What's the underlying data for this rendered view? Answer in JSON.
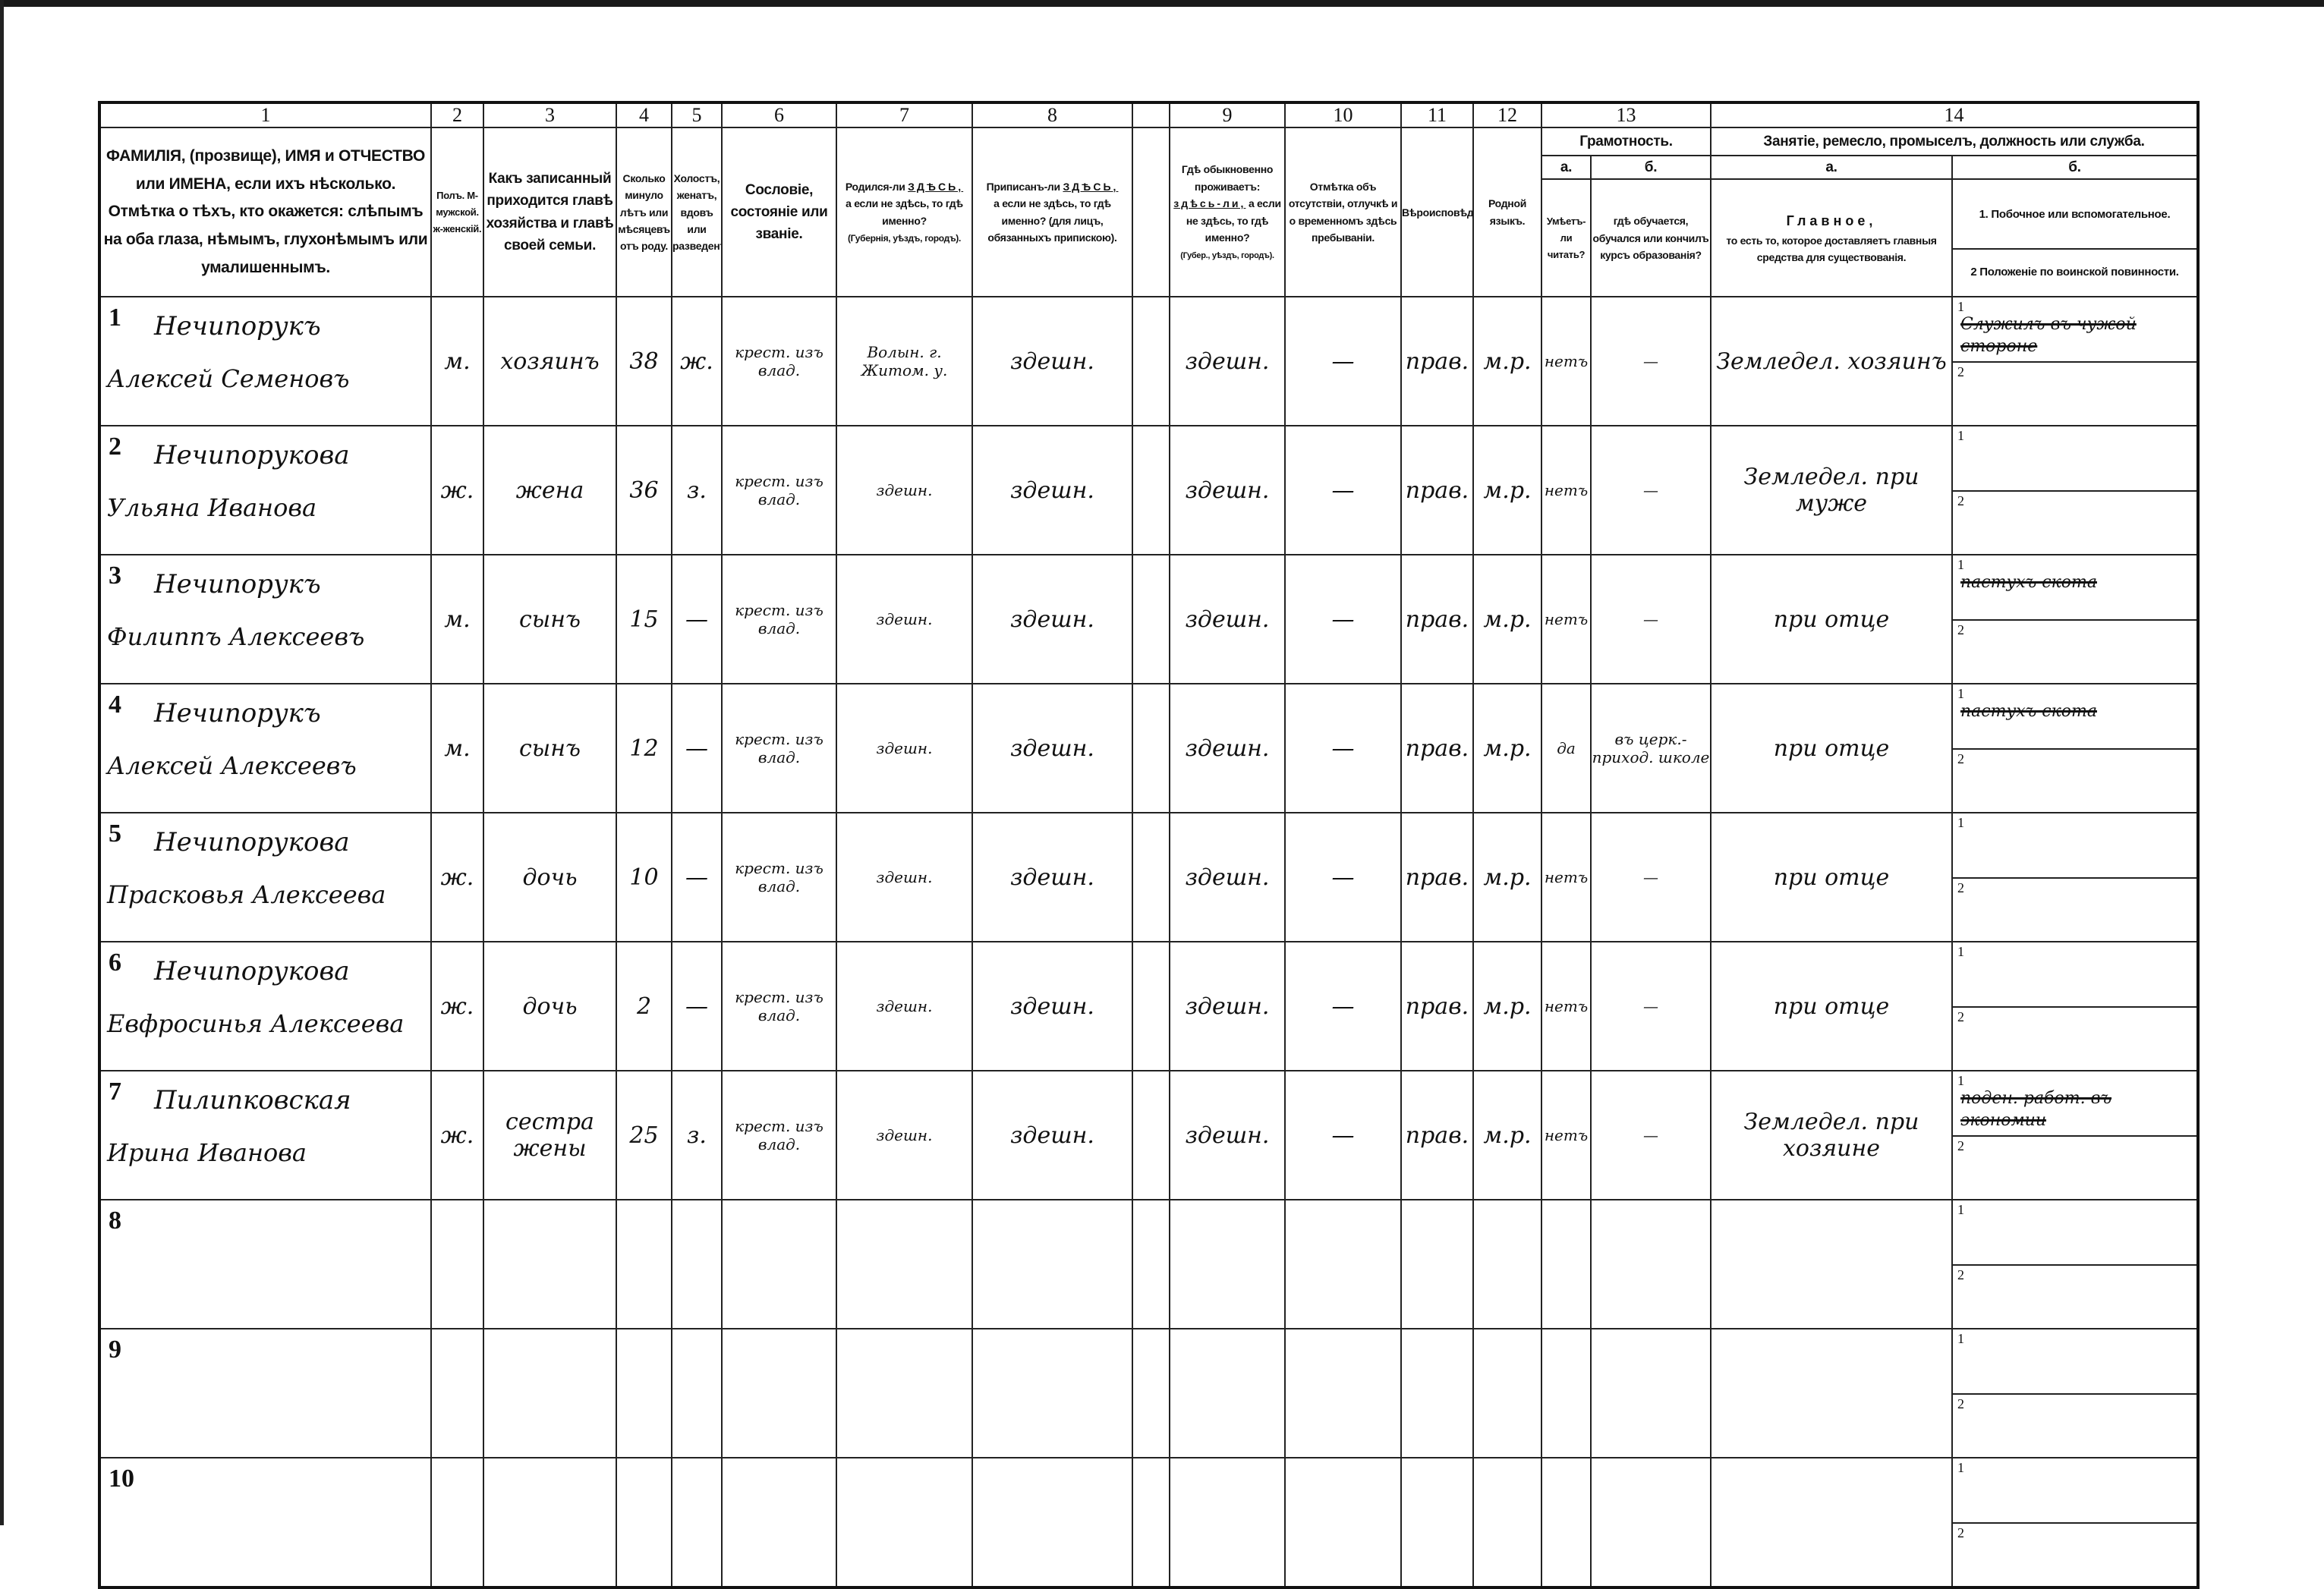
{
  "header": {
    "numbers": [
      "1",
      "2",
      "3",
      "4",
      "5",
      "6",
      "7",
      "8",
      "",
      "9",
      "10",
      "11",
      "12",
      "13",
      "14"
    ],
    "col1": "ФАМИЛІЯ, (прозвище), ИМЯ и ОТЧЕСТВО или ИМЕНА, если ихъ нѣсколько. Отмѣтка о тѣхъ, кто окажется: слѣпымъ на оба глаза, нѣмымъ, глухонѣмымъ или умалишеннымъ.",
    "col2": "Полъ. М-мужской. ж-женскій.",
    "col3": "Какъ записанный приходится главѣ хозяйства и главѣ своей семьи.",
    "col4": "Сколько минуло лѣтъ или мѣсяцевъ отъ роду.",
    "col5": "Холостъ, женатъ, вдовъ или разведенъ.",
    "col6": "Сословіе, состояніе или званіе.",
    "col7_a": "Родился-ли",
    "col7_u": "ЗДѢСЬ,",
    "col7_b": "а если не здѣсь, то гдѣ именно?",
    "col7_c": "(Губернія, уѣздъ, городъ).",
    "col8_a": "Приписанъ-ли",
    "col8_u": "ЗДѢСЬ,",
    "col8_b": "а если не здѣсь, то гдѣ именно? (для лицъ, обязанныхъ припискою).",
    "col9_a": "Гдѣ обыкновенно проживаетъ:",
    "col9_u": "здѣсь-ли,",
    "col9_b": "а если не здѣсь, то гдѣ именно?",
    "col9_c": "(Губер., уѣздъ, городъ).",
    "col10": "Отмѣтка объ отсутствіи, отлучкѣ и о временномъ здѣсь пребываніи.",
    "col11": "Вѣроисповѣданіе.",
    "col12": "Родной языкъ.",
    "col13_title": "Грамотность.",
    "col13_a": "а.",
    "col13_b": "б.",
    "col13_a_text": "Умѣетъ-ли читать?",
    "col13_b_text": "гдѣ обучается, обучался или кончилъ курсъ образованія?",
    "col14_title": "Занятіе, ремесло, промыселъ, должность или служба.",
    "col14_a": "а.",
    "col14_b": "б.",
    "col14_a_title": "Главное,",
    "col14_a_text": "то есть то, которое доставляетъ главныя средства для существованія.",
    "col14_b_1": "1. Побочное или вспомогательное.",
    "col14_b_2": "2 Положеніе по воинской повинности."
  },
  "side_labels": [
    "1",
    "2"
  ],
  "rows": [
    {
      "num": "1",
      "surname": "Нечипорукъ",
      "given": "Алексей Семеновъ",
      "sex": "м.",
      "relation": "хозяинъ",
      "age": "38",
      "marital": "ж.",
      "estate": "крест. изъ влад.",
      "birthplace": "Волын. г. Житом. у.",
      "registered": "здешн.",
      "residence": "здешн.",
      "absence": "—",
      "religion": "прав.",
      "language": "м.р.",
      "lit_a": "нетъ",
      "lit_b": "—",
      "occ_main": "Земледел. хозяинъ",
      "occ_side": "Служилъ въ чужой стороне",
      "occ_side_struck": true,
      "military": ""
    },
    {
      "num": "2",
      "surname": "Нечипорукова",
      "given": "Ульяна Иванова",
      "sex": "ж.",
      "relation": "жена",
      "age": "36",
      "marital": "з.",
      "estate": "крест. изъ влад.",
      "birthplace": "здешн.",
      "registered": "здешн.",
      "residence": "здешн.",
      "absence": "—",
      "religion": "прав.",
      "language": "м.р.",
      "lit_a": "нетъ",
      "lit_b": "—",
      "occ_main": "Земледел. при муже",
      "occ_side": "",
      "occ_side_struck": false,
      "military": ""
    },
    {
      "num": "3",
      "surname": "Нечипорукъ",
      "given": "Филиппъ Алексеевъ",
      "sex": "м.",
      "relation": "сынъ",
      "age": "15",
      "marital": "—",
      "estate": "крест. изъ влад.",
      "birthplace": "здешн.",
      "registered": "здешн.",
      "residence": "здешн.",
      "absence": "—",
      "religion": "прав.",
      "language": "м.р.",
      "lit_a": "нетъ",
      "lit_b": "—",
      "occ_main": "при отце",
      "occ_side": "пастухъ скота",
      "occ_side_struck": true,
      "military": ""
    },
    {
      "num": "4",
      "surname": "Нечипорукъ",
      "given": "Алексей Алексеевъ",
      "sex": "м.",
      "relation": "сынъ",
      "age": "12",
      "marital": "—",
      "estate": "крест. изъ влад.",
      "birthplace": "здешн.",
      "registered": "здешн.",
      "residence": "здешн.",
      "absence": "—",
      "religion": "прав.",
      "language": "м.р.",
      "lit_a": "да",
      "lit_b": "въ церк.-приход. школе",
      "occ_main": "при отце",
      "occ_side": "пастухъ скота",
      "occ_side_struck": true,
      "military": ""
    },
    {
      "num": "5",
      "surname": "Нечипорукова",
      "given": "Прасковья Алексеева",
      "sex": "ж.",
      "relation": "дочь",
      "age": "10",
      "marital": "—",
      "estate": "крест. изъ влад.",
      "birthplace": "здешн.",
      "registered": "здешн.",
      "residence": "здешн.",
      "absence": "—",
      "religion": "прав.",
      "language": "м.р.",
      "lit_a": "нетъ",
      "lit_b": "—",
      "occ_main": "при отце",
      "occ_side": "",
      "occ_side_struck": false,
      "military": ""
    },
    {
      "num": "6",
      "surname": "Нечипорукова",
      "given": "Евфросинья Алексеева",
      "sex": "ж.",
      "relation": "дочь",
      "age": "2",
      "marital": "—",
      "estate": "крест. изъ влад.",
      "birthplace": "здешн.",
      "registered": "здешн.",
      "residence": "здешн.",
      "absence": "—",
      "religion": "прав.",
      "language": "м.р.",
      "lit_a": "нетъ",
      "lit_b": "—",
      "occ_main": "при отце",
      "occ_side": "",
      "occ_side_struck": false,
      "military": ""
    },
    {
      "num": "7",
      "surname": "Пилипковская",
      "given": "Ирина Иванова",
      "sex": "ж.",
      "relation": "сестра жены",
      "age": "25",
      "marital": "з.",
      "estate": "крест. изъ влад.",
      "birthplace": "здешн.",
      "registered": "здешн.",
      "residence": "здешн.",
      "absence": "—",
      "religion": "прав.",
      "language": "м.р.",
      "lit_a": "нетъ",
      "lit_b": "—",
      "occ_main": "Земледел. при хозяине",
      "occ_side": "поден. работ. въ экономии",
      "occ_side_struck": true,
      "military": ""
    },
    {
      "num": "8",
      "surname": "",
      "given": "",
      "sex": "",
      "relation": "",
      "age": "",
      "marital": "",
      "estate": "",
      "birthplace": "",
      "registered": "",
      "residence": "",
      "absence": "",
      "religion": "",
      "language": "",
      "lit_a": "",
      "lit_b": "",
      "occ_main": "",
      "occ_side": "",
      "occ_side_struck": false,
      "military": ""
    },
    {
      "num": "9",
      "surname": "",
      "given": "",
      "sex": "",
      "relation": "",
      "age": "",
      "marital": "",
      "estate": "",
      "birthplace": "",
      "registered": "",
      "residence": "",
      "absence": "",
      "religion": "",
      "language": "",
      "lit_a": "",
      "lit_b": "",
      "occ_main": "",
      "occ_side": "",
      "occ_side_struck": false,
      "military": ""
    },
    {
      "num": "10",
      "surname": "",
      "given": "",
      "sex": "",
      "relation": "",
      "age": "",
      "marital": "",
      "estate": "",
      "birthplace": "",
      "registered": "",
      "residence": "",
      "absence": "",
      "religion": "",
      "language": "",
      "lit_a": "",
      "lit_b": "",
      "occ_main": "",
      "occ_side": "",
      "occ_side_struck": false,
      "military": ""
    }
  ]
}
